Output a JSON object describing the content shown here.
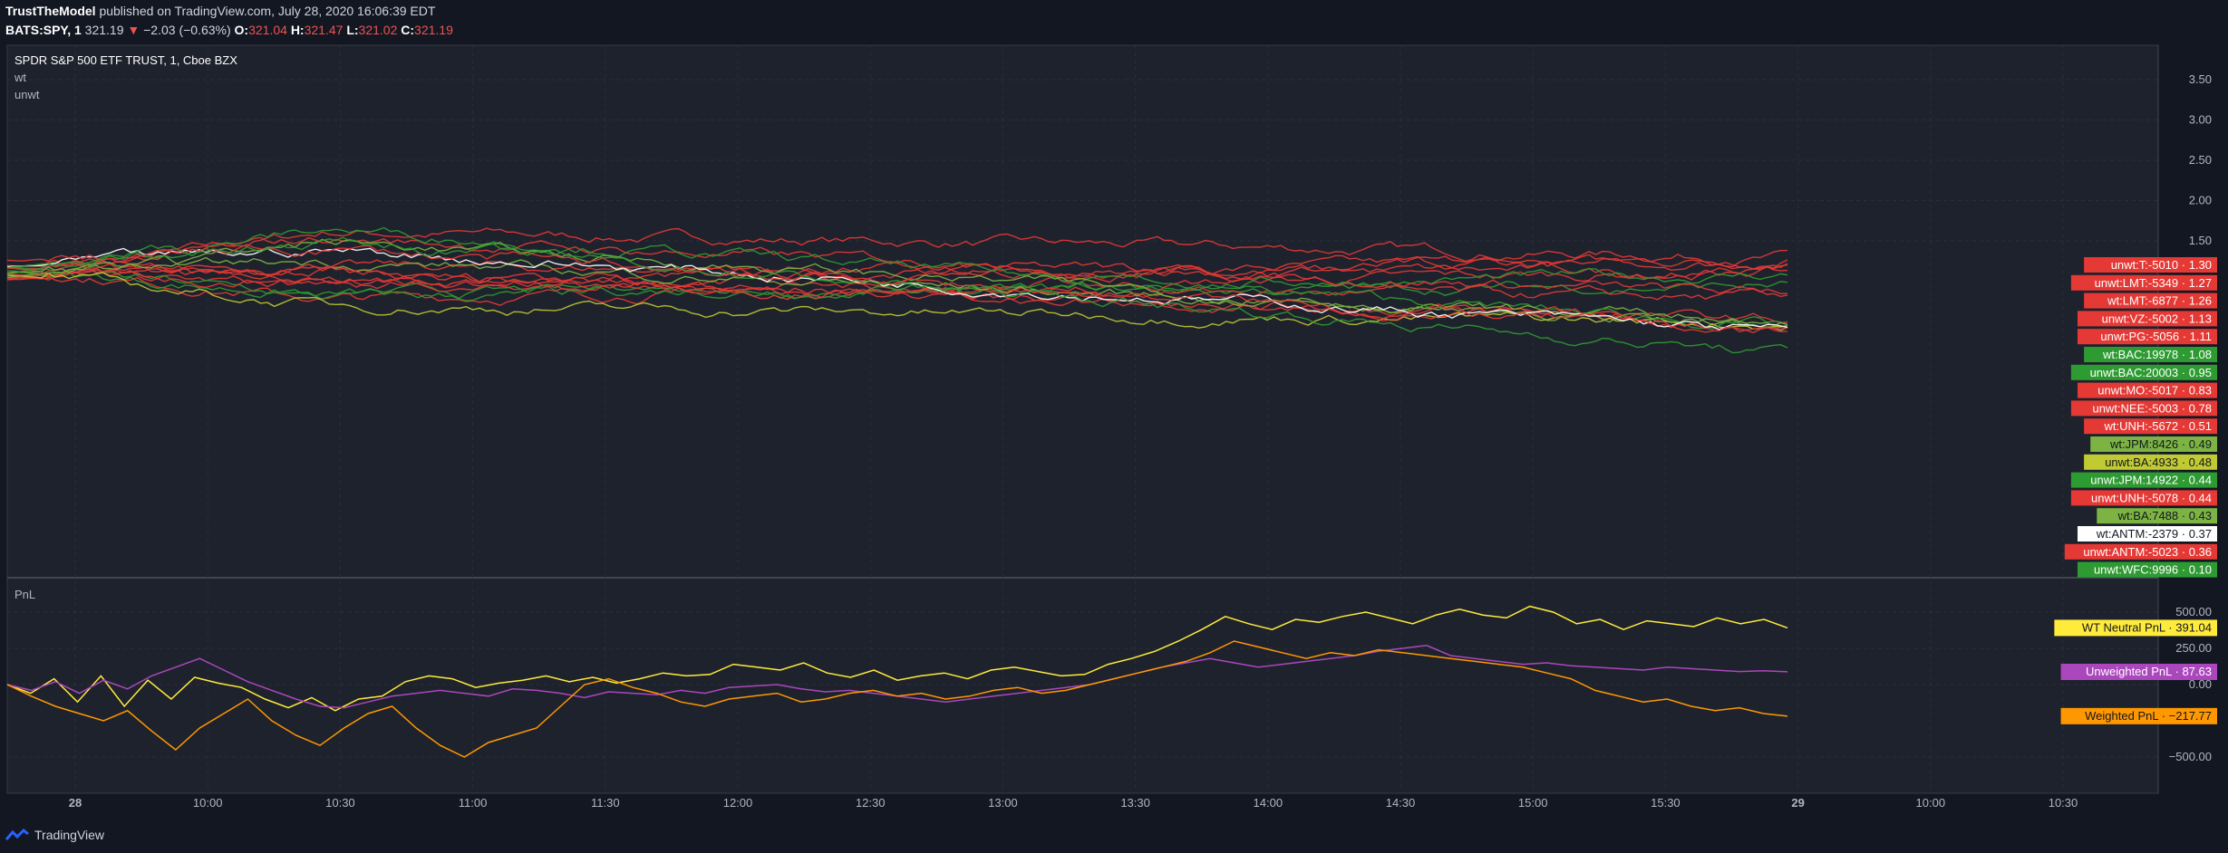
{
  "header": {
    "author": "TrustTheModel",
    "published": "published on TradingView.com, July 28, 2020 16:06:39 EDT",
    "symbol": "BATS:SPY, 1",
    "price": "321.19",
    "change": "−2.03 (−0.63%)",
    "o_label": "O:",
    "o_value": "321.04",
    "h_label": "H:",
    "h_value": "321.47",
    "l_label": "L:",
    "l_value": "321.02",
    "c_label": "C:",
    "c_value": "321.19"
  },
  "legend": {
    "title": "SPDR S&P 500 ETF TRUST, 1, Cboe BZX",
    "line2": "wt",
    "line3": "unwt",
    "pnl_title": "PnL"
  },
  "footer": {
    "brand": "TradingView"
  },
  "colors": {
    "background": "#131722",
    "pane": "#1e222d",
    "grid": "#363a45",
    "red": "#e53935",
    "green": "#2e9b32",
    "lime": "#8bc34a",
    "yellow": "#e0e060",
    "white": "#ffffff",
    "purple": "#9c27b0",
    "orange": "#ff9800",
    "wt_neutral": "#ffeb3b"
  },
  "chart_data": [
    {
      "type": "line",
      "pane": "main",
      "x_ticks": [
        "28",
        "10:00",
        "10:30",
        "11:00",
        "11:30",
        "12:00",
        "12:30",
        "13:00",
        "13:30",
        "14:00",
        "14:30",
        "15:00",
        "15:30",
        "29",
        "10:00",
        "10:30"
      ],
      "y_ticks": [
        "3.50",
        "3.00",
        "2.50",
        "2.00",
        "1.50"
      ],
      "ylim": [
        0.05,
        3.75
      ],
      "series": [
        {
          "name": "unwt:T:-5010",
          "value": "1.30",
          "color": "#e53935",
          "end": 1.3
        },
        {
          "name": "unwt:LMT:-5349",
          "value": "1.27",
          "color": "#e53935",
          "end": 1.27
        },
        {
          "name": "wt:LMT:-6877",
          "value": "1.26",
          "color": "#e53935",
          "end": 1.26
        },
        {
          "name": "unwt:VZ:-5002",
          "value": "1.13",
          "color": "#e53935",
          "end": 1.13
        },
        {
          "name": "unwt:PG:-5056",
          "value": "1.11",
          "color": "#e53935",
          "end": 1.11
        },
        {
          "name": "wt:BAC:19978",
          "value": "1.08",
          "color": "#2e9b32",
          "end": 1.08
        },
        {
          "name": "unwt:BAC:20003",
          "value": "0.95",
          "color": "#2e9b32",
          "end": 0.95
        },
        {
          "name": "unwt:MO:-5017",
          "value": "0.83",
          "color": "#e53935",
          "end": 0.83
        },
        {
          "name": "unwt:NEE:-5003",
          "value": "0.78",
          "color": "#e53935",
          "end": 0.78
        },
        {
          "name": "wt:UNH:-5672",
          "value": "0.51",
          "color": "#e53935",
          "end": 0.51
        },
        {
          "name": "wt:JPM:8426",
          "value": "0.49",
          "color": "#7cb342",
          "end": 0.49
        },
        {
          "name": "unwt:BA:4933",
          "value": "0.48",
          "color": "#c0ca33",
          "end": 0.48
        },
        {
          "name": "unwt:JPM:14922",
          "value": "0.44",
          "color": "#2e9b32",
          "end": 0.44
        },
        {
          "name": "unwt:UNH:-5078",
          "value": "0.44",
          "color": "#e53935",
          "end": 0.44
        },
        {
          "name": "wt:BA:7488",
          "value": "0.43",
          "color": "#7cb342",
          "end": 0.43
        },
        {
          "name": "wt:ANTM:-2379",
          "value": "0.37",
          "color": "#ffffff",
          "end": 0.37
        },
        {
          "name": "unwt:ANTM:-5023",
          "value": "0.36",
          "color": "#e53935",
          "end": 0.36
        },
        {
          "name": "unwt:WFC:9996",
          "value": "0.10",
          "color": "#2e9b32",
          "end": 0.1
        }
      ]
    },
    {
      "type": "line",
      "pane": "PnL",
      "y_ticks": [
        "500.00",
        "250.00",
        "0.00",
        "−500.00"
      ],
      "ylim": [
        -700,
        620
      ],
      "series": [
        {
          "name": "WT Neutral PnL",
          "value": "391.04",
          "color": "#ffeb3b",
          "end": 391.04,
          "points": [
            0,
            -60,
            40,
            -120,
            60,
            -150,
            30,
            -100,
            50,
            10,
            -20,
            -100,
            -160,
            -90,
            -180,
            -100,
            -80,
            20,
            60,
            40,
            -20,
            10,
            30,
            60,
            20,
            50,
            10,
            40,
            80,
            60,
            70,
            140,
            120,
            100,
            150,
            80,
            50,
            100,
            30,
            60,
            80,
            40,
            100,
            120,
            90,
            60,
            70,
            140,
            180,
            230,
            300,
            380,
            470,
            420,
            380,
            450,
            430,
            470,
            500,
            460,
            420,
            480,
            520,
            480,
            460,
            540,
            500,
            420,
            450,
            380,
            440,
            420,
            400,
            460,
            420,
            450,
            391
          ]
        },
        {
          "name": "Unweighted PnL",
          "value": "87.63",
          "color": "#ab47bc",
          "end": 87.63,
          "points": [
            0,
            -40,
            20,
            -60,
            30,
            -30,
            60,
            120,
            180,
            100,
            20,
            -40,
            -100,
            -150,
            -160,
            -120,
            -80,
            -60,
            -40,
            -60,
            -80,
            -30,
            -40,
            -60,
            -90,
            -50,
            -60,
            -70,
            -40,
            -60,
            -20,
            -10,
            0,
            -30,
            -50,
            -40,
            -60,
            -80,
            -100,
            -120,
            -100,
            -80,
            -60,
            -40,
            -20,
            0,
            40,
            80,
            120,
            150,
            180,
            150,
            120,
            140,
            160,
            180,
            200,
            230,
            250,
            270,
            200,
            180,
            160,
            140,
            150,
            130,
            120,
            110,
            100,
            120,
            110,
            100,
            90,
            95,
            88
          ]
        },
        {
          "name": "Weighted PnL",
          "value": "−217.77",
          "color": "#ff9800",
          "end": -217.77,
          "points": [
            0,
            -80,
            -150,
            -200,
            -250,
            -180,
            -320,
            -450,
            -300,
            -200,
            -100,
            -250,
            -350,
            -420,
            -300,
            -200,
            -150,
            -300,
            -420,
            -500,
            -400,
            -350,
            -300,
            -150,
            0,
            40,
            -20,
            -60,
            -120,
            -150,
            -100,
            -80,
            -60,
            -120,
            -100,
            -60,
            -40,
            -80,
            -60,
            -100,
            -80,
            -40,
            -20,
            -60,
            -40,
            0,
            40,
            80,
            120,
            160,
            220,
            300,
            260,
            220,
            180,
            220,
            200,
            240,
            220,
            200,
            180,
            160,
            140,
            120,
            80,
            40,
            -40,
            -80,
            -120,
            -100,
            -150,
            -180,
            -160,
            -200,
            -218
          ]
        }
      ]
    }
  ]
}
